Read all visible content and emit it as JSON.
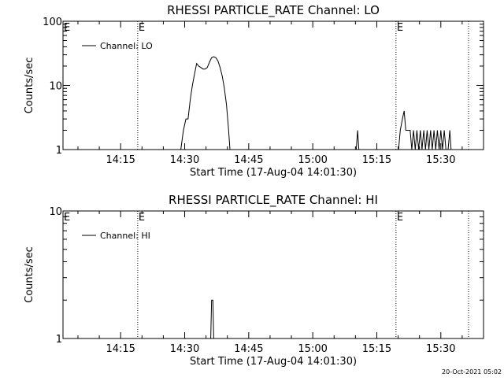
{
  "footer_timestamp": "20-Oct-2021 05:02",
  "chart_data": [
    {
      "type": "line",
      "title": "RHESSI PARTICLE_RATE Channel: LO",
      "xlabel": "Start Time (17-Aug-04 14:01:30)",
      "ylabel": "Counts/sec",
      "yscale": "log",
      "ylim": [
        1,
        100
      ],
      "y_ticks": [
        1,
        10,
        100
      ],
      "y_tick_labels": [
        "1",
        "10",
        "100"
      ],
      "x_range_min": [
        0,
        98.5
      ],
      "x_ticks_min": [
        13.5,
        28.5,
        43.5,
        58.5,
        73.5,
        88.5
      ],
      "x_tick_labels": [
        "14:15",
        "14:30",
        "14:45",
        "15:00",
        "15:15",
        "15:30"
      ],
      "legend": "top-left",
      "series": [
        {
          "name": "Channel: LO",
          "points": [
            [
              27.6,
              1
            ],
            [
              28.2,
              2
            ],
            [
              28.8,
              3
            ],
            [
              29.3,
              3
            ],
            [
              29.8,
              6
            ],
            [
              30.3,
              10
            ],
            [
              30.8,
              15
            ],
            [
              31.3,
              22
            ],
            [
              31.8,
              20
            ],
            [
              32.3,
              19
            ],
            [
              32.8,
              18
            ],
            [
              33.3,
              18
            ],
            [
              33.8,
              19
            ],
            [
              34.3,
              23
            ],
            [
              34.8,
              27
            ],
            [
              35.3,
              28
            ],
            [
              35.8,
              27
            ],
            [
              36.3,
              24
            ],
            [
              36.8,
              19
            ],
            [
              37.3,
              14
            ],
            [
              37.8,
              9
            ],
            [
              38.3,
              5
            ],
            [
              38.8,
              2
            ],
            [
              39.1,
              1
            ],
            [
              68.7,
              1
            ],
            [
              69.0,
              2
            ],
            [
              69.3,
              1
            ],
            [
              78.6,
              1
            ],
            [
              79.0,
              2
            ],
            [
              79.5,
              3
            ],
            [
              79.9,
              4
            ],
            [
              80.3,
              2
            ],
            [
              80.8,
              2
            ],
            [
              81.3,
              2
            ],
            [
              81.7,
              1
            ],
            [
              82.1,
              2
            ],
            [
              82.5,
              1
            ],
            [
              82.9,
              2
            ],
            [
              83.3,
              1
            ],
            [
              83.7,
              2
            ],
            [
              84.1,
              1
            ],
            [
              84.5,
              2
            ],
            [
              84.9,
              1
            ],
            [
              85.3,
              2
            ],
            [
              85.7,
              1
            ],
            [
              86.1,
              2
            ],
            [
              86.5,
              1
            ],
            [
              86.9,
              2
            ],
            [
              87.3,
              1
            ],
            [
              87.7,
              2
            ],
            [
              88.1,
              1
            ],
            [
              88.5,
              2
            ],
            [
              88.9,
              1
            ],
            [
              89.3,
              2
            ],
            [
              89.7,
              1
            ],
            [
              90.2,
              1
            ],
            [
              90.6,
              2
            ],
            [
              90.9,
              1
            ]
          ]
        }
      ],
      "markers": [
        {
          "x_min": 17.5,
          "label": "E"
        },
        {
          "x_min": 78.0,
          "label": "E"
        },
        {
          "x_min": 95.0,
          "label": ""
        }
      ]
    },
    {
      "type": "line",
      "title": "RHESSI PARTICLE_RATE Channel: HI",
      "xlabel": "Start Time (17-Aug-04 14:01:30)",
      "ylabel": "Counts/sec",
      "yscale": "log",
      "ylim": [
        1,
        10
      ],
      "y_ticks": [
        1,
        10
      ],
      "y_tick_labels": [
        "1",
        "10"
      ],
      "x_range_min": [
        0,
        98.5
      ],
      "x_ticks_min": [
        13.5,
        28.5,
        43.5,
        58.5,
        73.5,
        88.5
      ],
      "x_tick_labels": [
        "14:15",
        "14:30",
        "14:45",
        "15:00",
        "15:15",
        "15:30"
      ],
      "legend": "top-left",
      "series": [
        {
          "name": "Channel: HI",
          "points": [
            [
              34.6,
              1
            ],
            [
              34.8,
              2
            ],
            [
              35.1,
              2
            ],
            [
              35.3,
              1
            ]
          ]
        }
      ],
      "markers": [
        {
          "x_min": 17.5,
          "label": "E"
        },
        {
          "x_min": 78.0,
          "label": "E"
        },
        {
          "x_min": 95.0,
          "label": ""
        }
      ]
    }
  ]
}
